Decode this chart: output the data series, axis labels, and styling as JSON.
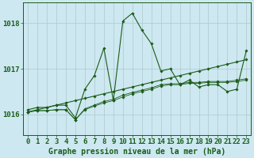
{
  "title": "Graphe pression niveau de la mer (hPa)",
  "bg_color": "#cde8f0",
  "grid_color": "#b0c8d0",
  "line_color": "#1a5c1a",
  "hours": [
    0,
    1,
    2,
    3,
    4,
    5,
    6,
    7,
    8,
    9,
    10,
    11,
    12,
    13,
    14,
    15,
    16,
    17,
    18,
    19,
    20,
    21,
    22,
    23
  ],
  "series_volatile": [
    1016.1,
    1016.15,
    1016.15,
    1016.2,
    1016.2,
    1015.92,
    1016.55,
    1016.85,
    1017.45,
    1016.3,
    1018.05,
    1018.22,
    1017.85,
    1017.55,
    1016.95,
    1017.0,
    1016.65,
    1016.75,
    1016.6,
    1016.65,
    1016.65,
    1016.5,
    1016.55,
    1017.4
  ],
  "series_trend1": [
    1016.05,
    1016.1,
    1016.15,
    1016.2,
    1016.25,
    1016.3,
    1016.35,
    1016.4,
    1016.45,
    1016.5,
    1016.55,
    1016.6,
    1016.65,
    1016.7,
    1016.75,
    1016.8,
    1016.85,
    1016.9,
    1016.95,
    1017.0,
    1017.05,
    1017.1,
    1017.15,
    1017.2
  ],
  "series_flat1": [
    1016.05,
    1016.08,
    1016.08,
    1016.1,
    1016.1,
    1015.88,
    1016.1,
    1016.18,
    1016.25,
    1016.3,
    1016.38,
    1016.45,
    1016.5,
    1016.55,
    1016.62,
    1016.65,
    1016.65,
    1016.68,
    1016.68,
    1016.7,
    1016.7,
    1016.7,
    1016.72,
    1016.75
  ],
  "series_flat2": [
    1016.05,
    1016.08,
    1016.08,
    1016.1,
    1016.1,
    1015.88,
    1016.12,
    1016.2,
    1016.28,
    1016.33,
    1016.42,
    1016.48,
    1016.53,
    1016.58,
    1016.65,
    1016.67,
    1016.67,
    1016.7,
    1016.7,
    1016.72,
    1016.72,
    1016.72,
    1016.75,
    1016.78
  ],
  "ylim": [
    1015.55,
    1018.45
  ],
  "yticks": [
    1016,
    1017,
    1018
  ],
  "tick_fontsize": 6.5,
  "title_fontsize": 7.0
}
